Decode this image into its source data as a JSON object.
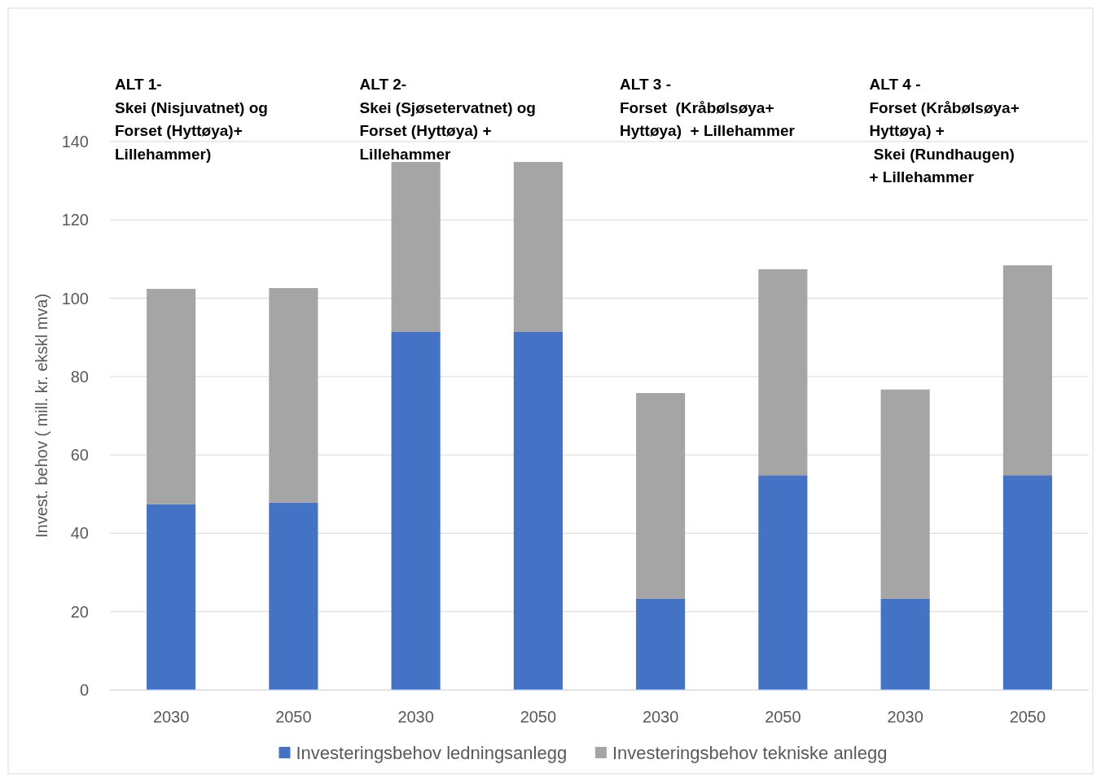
{
  "chart_data": {
    "type": "bar",
    "stacked": true,
    "categories": [
      "2030",
      "2050",
      "2030",
      "2050",
      "2030",
      "2050",
      "2030",
      "2050"
    ],
    "series": [
      {
        "name": "Investeringsbehov ledningsanlegg",
        "color": "#4472c4",
        "values": [
          47.4,
          47.8,
          91.4,
          91.4,
          23.3,
          54.8,
          23.3,
          54.8
        ]
      },
      {
        "name": "Investeringsbehov tekniske anlegg",
        "color": "#a5a5a5",
        "values": [
          55.0,
          54.8,
          43.4,
          43.4,
          52.5,
          52.6,
          53.4,
          53.6
        ]
      }
    ],
    "ylabel": "Invest. behov  ( mill. kr. ekskl mva)",
    "ylim": [
      0,
      140
    ],
    "yticks": [
      0,
      20,
      40,
      60,
      80,
      100,
      120,
      140
    ],
    "grid": "y",
    "legend": "bottom",
    "annotations": [
      "ALT 1-\nSkei (Nisjuvatnet) og\nForset (Hyttøya)+\nLillehammer)",
      "ALT 2-\nSkei (Sjøsetervatnet) og\nForset (Hyttøya) +\nLillehammer",
      "ALT 3 -\nForset  (Kråbølsøya+\nHyttøya)  + Lillehammer",
      "ALT 4 -\nForset (Kråbølsøya+\nHyttøya) +\n Skei (Rundhaugen)\n+ Lillehammer"
    ]
  }
}
